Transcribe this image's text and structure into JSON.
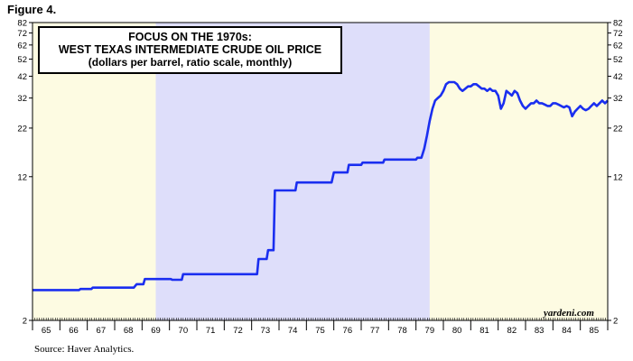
{
  "figure_label": "Figure 4.",
  "source": "Source: Haver Analytics.",
  "watermark": "yardeni.com",
  "colors": {
    "line": "#1a2ef0",
    "highlight": "#dedefa",
    "background": "#fdfbe2",
    "axis": "#000000"
  },
  "chart_data": {
    "type": "line",
    "title": "FOCUS ON THE 1970s:",
    "subtitle": "WEST TEXAS INTERMEDIATE CRUDE OIL PRICE",
    "note": "(dollars per barrel, ratio scale, monthly)",
    "y_scale": "log",
    "ylim": [
      2,
      82
    ],
    "y_ticks": [
      2,
      12,
      22,
      32,
      42,
      52,
      62,
      72,
      82
    ],
    "xlim": [
      1965.0,
      1986.0
    ],
    "x_tick_labels": [
      "65",
      "66",
      "67",
      "68",
      "69",
      "70",
      "71",
      "72",
      "73",
      "74",
      "75",
      "76",
      "77",
      "78",
      "79",
      "80",
      "81",
      "82",
      "83",
      "84",
      "85"
    ],
    "shaded_period": [
      1969.5,
      1979.5
    ],
    "grid": false,
    "series": [
      {
        "x": [
          1965.0,
          1966.7,
          1966.75,
          1967.15,
          1967.2,
          1968.7,
          1968.8,
          1969.05,
          1969.1,
          1970.05,
          1970.1,
          1970.45,
          1970.5,
          1973.2,
          1973.25,
          1973.55,
          1973.6,
          1973.8,
          1973.85,
          1974.6,
          1974.65,
          1975.92,
          1976.0,
          1976.5,
          1976.55,
          1977.0,
          1977.05,
          1977.8,
          1977.85,
          1979.0,
          1979.05,
          1979.2,
          1979.3,
          1979.4,
          1979.5,
          1979.6,
          1979.7,
          1979.8,
          1979.9,
          1980.0,
          1980.1,
          1980.2,
          1980.3,
          1980.4,
          1980.5,
          1980.6,
          1980.7,
          1980.8,
          1980.9,
          1981.0,
          1981.1,
          1981.2,
          1981.3,
          1981.4,
          1981.5,
          1981.6,
          1981.7,
          1981.8,
          1981.9,
          1982.0,
          1982.1,
          1982.2,
          1982.3,
          1982.4,
          1982.5,
          1982.6,
          1982.7,
          1982.8,
          1982.9,
          1983.0,
          1983.1,
          1983.2,
          1983.3,
          1983.4,
          1983.5,
          1983.6,
          1983.7,
          1983.8,
          1983.9,
          1984.0,
          1984.1,
          1984.2,
          1984.3,
          1984.4,
          1984.5,
          1984.6,
          1984.7,
          1984.8,
          1984.9,
          1985.0,
          1985.1,
          1985.2,
          1985.3,
          1985.4,
          1985.5,
          1985.6,
          1985.7,
          1985.8,
          1985.9,
          1986.0
        ],
        "y": [
          2.92,
          2.92,
          2.96,
          2.96,
          3.01,
          3.01,
          3.14,
          3.14,
          3.35,
          3.35,
          3.32,
          3.32,
          3.56,
          3.56,
          4.3,
          4.3,
          4.8,
          4.8,
          10.11,
          10.11,
          11.16,
          11.16,
          12.65,
          12.65,
          13.9,
          13.9,
          14.3,
          14.3,
          14.85,
          14.85,
          15.2,
          15.2,
          17,
          20,
          24,
          28,
          31,
          32,
          33,
          35,
          38,
          39,
          39,
          39,
          38,
          36,
          35,
          36,
          37,
          37,
          38,
          38,
          37,
          36,
          36,
          35,
          36,
          35,
          35,
          33,
          28,
          30,
          35,
          34,
          33,
          35,
          34,
          31,
          29,
          28,
          29,
          30,
          30,
          31,
          30,
          30,
          29.5,
          29,
          29,
          30,
          30,
          29.5,
          29,
          28.5,
          29,
          28.5,
          25.5,
          27,
          28,
          29,
          28,
          27.5,
          28,
          29,
          30,
          29,
          30,
          31,
          30,
          31
        ]
      }
    ]
  }
}
